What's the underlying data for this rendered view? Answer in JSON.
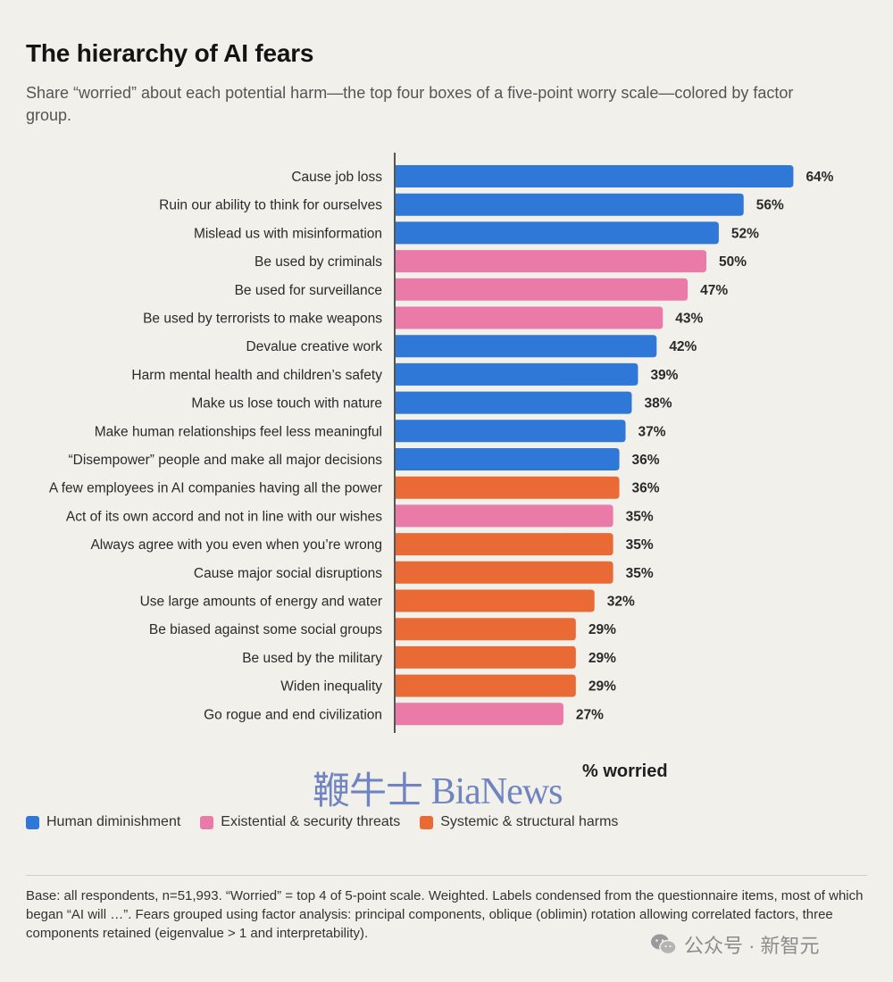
{
  "header": {
    "title": "The hierarchy of AI fears",
    "subtitle": "Share “worried” about each potential harm—the top four boxes of a five-point worry scale—colored by factor group."
  },
  "colors": {
    "human_diminishment": "#2f78d8",
    "existential_security": "#ea7ba8",
    "systemic_structural": "#ea6a35"
  },
  "chart_data": {
    "type": "bar",
    "orientation": "horizontal",
    "xlabel": "% worried",
    "categories": [
      "Cause job loss",
      "Ruin our ability to think for ourselves",
      "Mislead us with misinformation",
      "Be used by criminals",
      "Be used for surveillance",
      "Be used by terrorists to make weapons",
      "Devalue creative work",
      "Harm mental health and children’s safety",
      "Make us lose touch with nature",
      "Make human relationships feel less meaningful",
      "“Disempower” people and make all major decisions",
      "A few employees in AI companies having all the power",
      "Act of its own accord and not in line with our wishes",
      "Always agree with you even when you’re wrong",
      "Cause major social disruptions",
      "Use large amounts of energy and water",
      "Be biased against some social groups",
      "Be used by the military",
      "Widen inequality",
      "Go rogue and end civilization"
    ],
    "values": [
      64,
      56,
      52,
      50,
      47,
      43,
      42,
      39,
      38,
      37,
      36,
      36,
      35,
      35,
      35,
      32,
      29,
      29,
      29,
      27
    ],
    "value_labels": [
      "64%",
      "56%",
      "52%",
      "50%",
      "47%",
      "43%",
      "42%",
      "39%",
      "38%",
      "37%",
      "36%",
      "36%",
      "35%",
      "35%",
      "35%",
      "32%",
      "29%",
      "29%",
      "29%",
      "27%"
    ],
    "groups": [
      "human",
      "human",
      "human",
      "existential",
      "existential",
      "existential",
      "human",
      "human",
      "human",
      "human",
      "human",
      "systemic",
      "existential",
      "systemic",
      "systemic",
      "systemic",
      "systemic",
      "systemic",
      "systemic",
      "existential"
    ],
    "xlim": [
      0,
      70
    ],
    "legend": [
      {
        "key": "human",
        "name": "Human diminishment",
        "color": "#2f78d8"
      },
      {
        "key": "existential",
        "name": "Existential & security threats",
        "color": "#ea7ba8"
      },
      {
        "key": "systemic",
        "name": "Systemic & structural harms",
        "color": "#ea6a35"
      }
    ],
    "legend_position": "bottom-left"
  },
  "watermark": "鞭牛士 BiaNews",
  "footnote": "Base: all respondents, n=51,993. “Worried” = top 4 of 5-point scale. Weighted. Labels condensed from the questionnaire items, most of which began “AI will …”. Fears grouped using factor analysis: principal components, oblique (oblimin) rotation allowing correlated factors, three components retained (eigenvalue > 1 and interpretability).",
  "brand": {
    "icon": "wechat-icon",
    "text": "公众号 · 新智元"
  }
}
